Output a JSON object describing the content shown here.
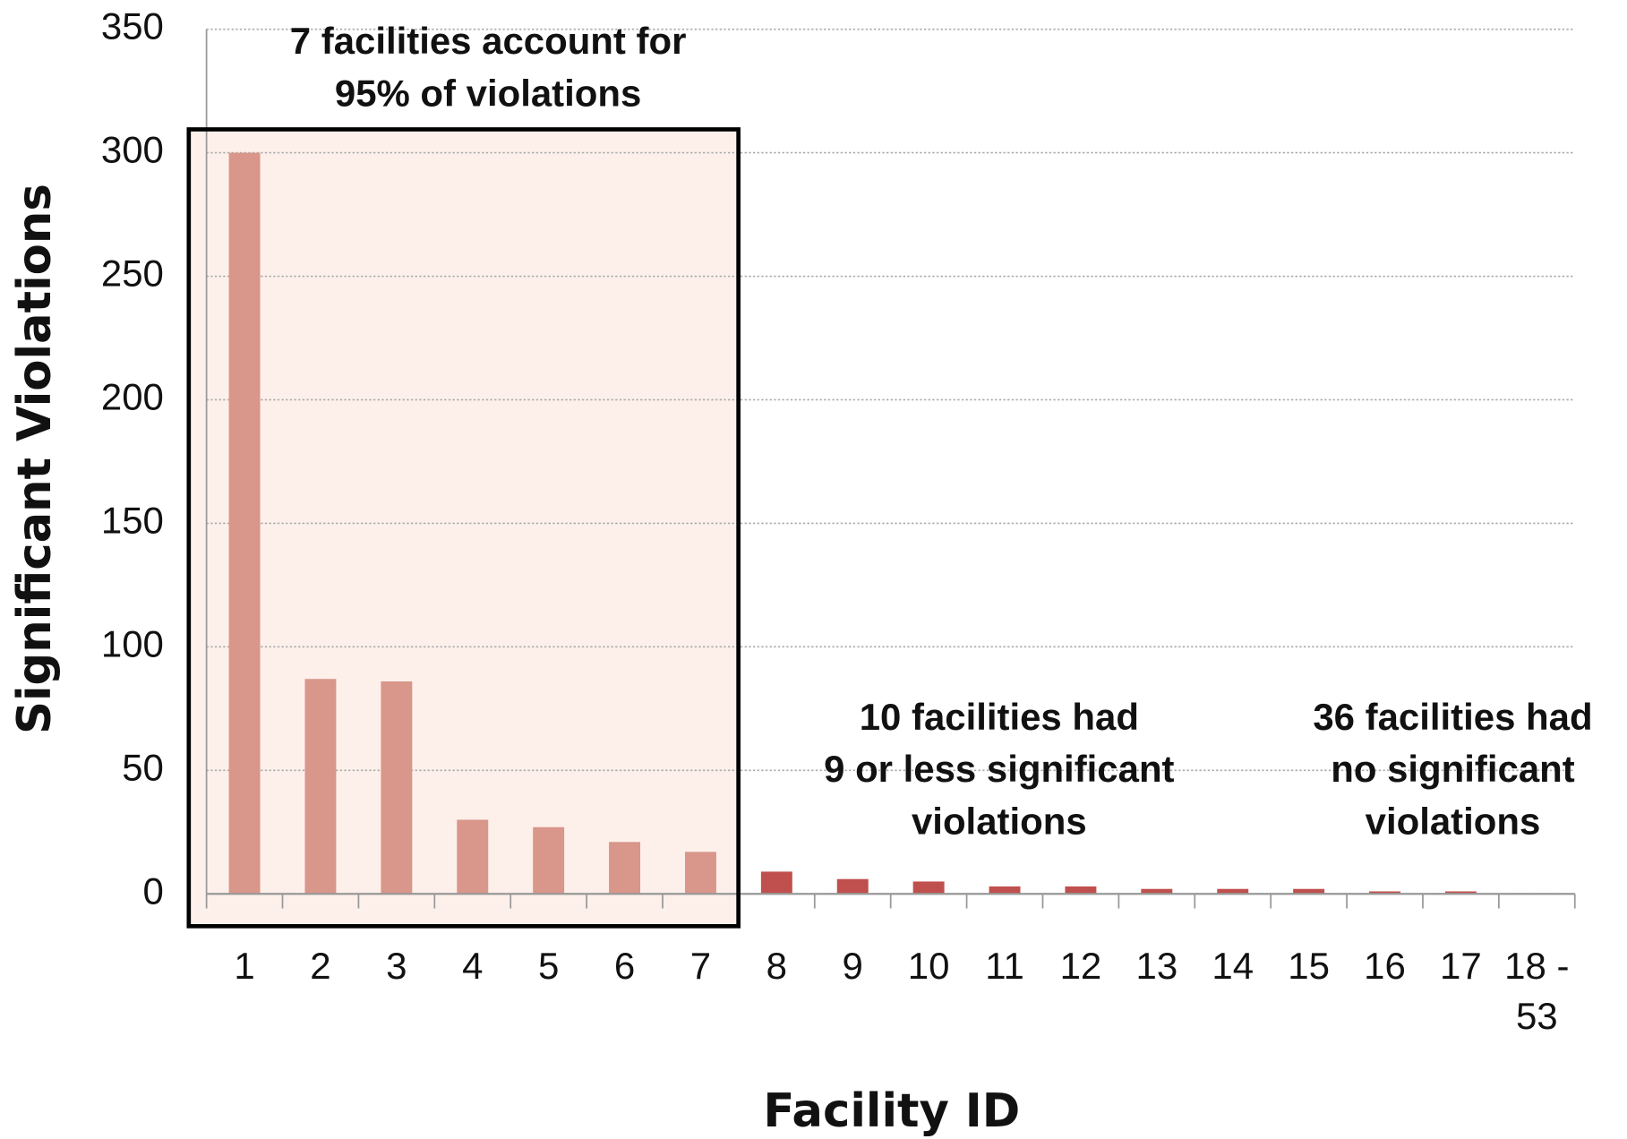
{
  "chart_data": {
    "type": "bar",
    "x_label": "Facility ID",
    "y_label": "Significant Violations",
    "categories": [
      "1",
      "2",
      "3",
      "4",
      "5",
      "6",
      "7",
      "8",
      "9",
      "10",
      "11",
      "12",
      "13",
      "14",
      "15",
      "16",
      "17",
      "18 - 53"
    ],
    "values": [
      300,
      87,
      86,
      30,
      27,
      21,
      17,
      9,
      6,
      5,
      3,
      3,
      2,
      2,
      2,
      1,
      1,
      0
    ],
    "colors": [
      "#d9968a",
      "#d9968a",
      "#d9968a",
      "#d9968a",
      "#d9968a",
      "#d9968a",
      "#d9968a",
      "#c0504d",
      "#c0504d",
      "#c0504d",
      "#c0504d",
      "#c0504d",
      "#c0504d",
      "#c0504d",
      "#c0504d",
      "#c0504d",
      "#c0504d",
      "#c0504d"
    ],
    "ylim": [
      0,
      350
    ],
    "yticks": [
      0,
      50,
      100,
      150,
      200,
      250,
      300,
      350
    ],
    "grid": true,
    "annotations": [
      {
        "lines": [
          "7 facilities account for",
          "95% of violations"
        ]
      },
      {
        "lines": [
          "10 facilities had",
          "9 or less significant",
          "violations"
        ]
      },
      {
        "lines": [
          "36 facilities had",
          "no significant",
          "violations"
        ]
      }
    ]
  }
}
